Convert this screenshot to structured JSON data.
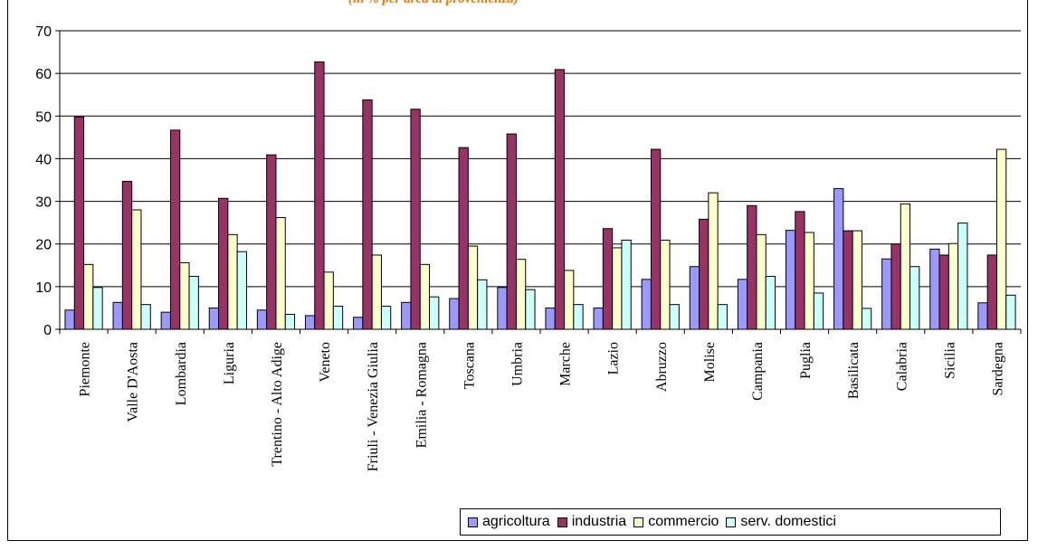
{
  "title": "(in % per area di provenienza)",
  "colors": {
    "agricoltura": "#9999ff",
    "industria": "#993366",
    "commercio": "#ffffcc",
    "serv_domestici": "#ccffff"
  },
  "chart_data": {
    "type": "bar",
    "ylim": [
      0,
      70
    ],
    "yticks": [
      "0",
      "10",
      "20",
      "30",
      "40",
      "50",
      "60",
      "70"
    ],
    "grid": true,
    "legend_position": "bottom-right",
    "categories": [
      "Piemonte",
      "Valle D'Aosta",
      "Lombardia",
      "Liguria",
      "Trentino - Alto Adige",
      "Veneto",
      "Friuli - Venezia Giulia",
      "Emilia - Romagna",
      "Toscana",
      "Umbria",
      "Marche",
      "Lazio",
      "Abruzzo",
      "Molise",
      "Campania",
      "Puglia",
      "Basilicata",
      "Calabria",
      "Sicilia",
      "Sardegna"
    ],
    "series": [
      {
        "name": "agricoltura",
        "color": "#9999ff",
        "values": [
          4.5,
          6.3,
          4.0,
          5.0,
          4.5,
          3.2,
          2.8,
          6.3,
          7.2,
          9.8,
          5.0,
          5.0,
          11.7,
          14.7,
          11.7,
          23.2,
          33.0,
          16.5,
          18.8,
          6.2
        ]
      },
      {
        "name": "industria",
        "color": "#993366",
        "values": [
          49.8,
          34.7,
          46.7,
          30.7,
          40.9,
          62.7,
          53.8,
          51.6,
          42.6,
          45.8,
          60.9,
          23.6,
          42.2,
          25.8,
          29.0,
          27.6,
          23.1,
          20.0,
          17.4,
          17.4
        ]
      },
      {
        "name": "commercio",
        "color": "#ffffcc",
        "values": [
          15.2,
          28.0,
          15.6,
          22.2,
          26.2,
          13.4,
          17.4,
          15.2,
          19.5,
          16.4,
          13.8,
          19.1,
          20.9,
          32.0,
          22.2,
          22.7,
          23.1,
          29.4,
          20.1,
          42.2
        ]
      },
      {
        "name": "serv. domestici",
        "color": "#ccffff",
        "values": [
          9.8,
          5.8,
          12.4,
          18.2,
          3.5,
          5.4,
          5.4,
          7.6,
          11.6,
          9.3,
          5.8,
          20.9,
          5.8,
          5.8,
          12.4,
          8.5,
          4.9,
          14.7,
          24.9,
          8.0
        ]
      }
    ]
  }
}
